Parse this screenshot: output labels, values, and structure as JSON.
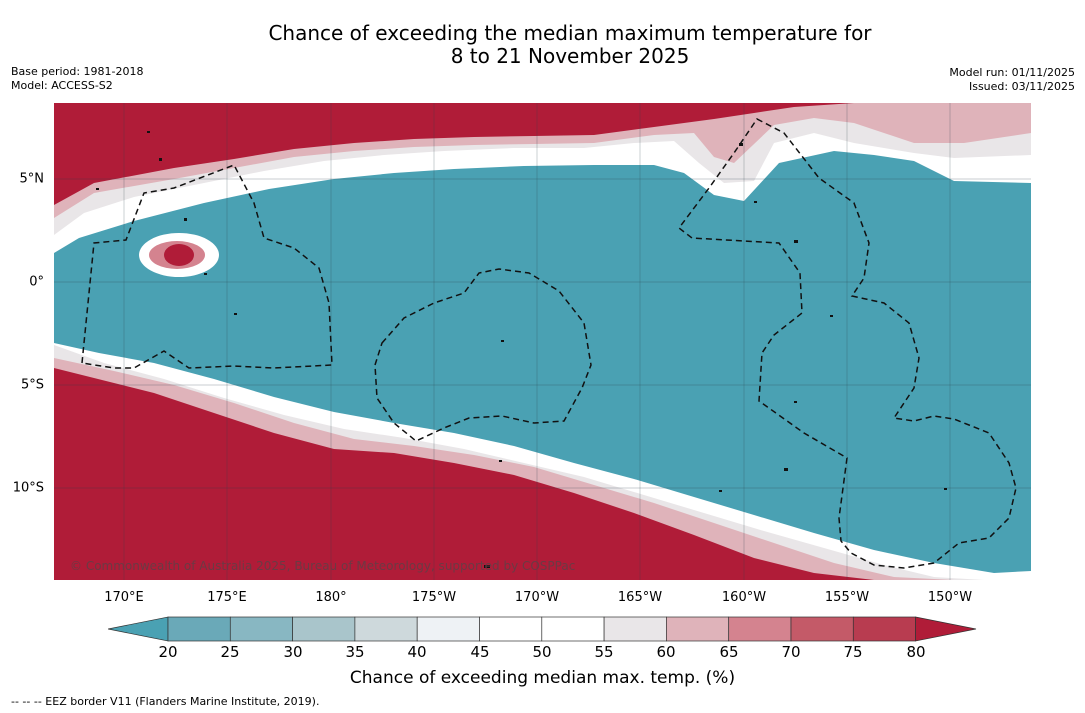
{
  "header": {
    "title_line1": "Chance of exceeding the median maximum temperature for",
    "title_line2": "8 to 21 November 2025",
    "base_period": "Base period: 1981-2018",
    "model": "Model: ACCESS-S2",
    "model_run": "Model run: 01/11/2025",
    "issued": "Issued: 03/11/2025"
  },
  "map": {
    "copyright": "© Commonwealth of Australia 2025, Bureau of Meteorology, supported by COSPPac",
    "lon_labels": [
      "170°E",
      "175°E",
      "180°",
      "175°W",
      "170°W",
      "165°W",
      "160°W",
      "155°W",
      "150°W"
    ],
    "lat_labels": [
      "5°N",
      "0°",
      "5°S",
      "10°S"
    ],
    "colors": {
      "hot_extreme": "#b01c38",
      "cool": "#4aa1b3",
      "white": "#ffffff"
    }
  },
  "colorbar": {
    "ticks": [
      "20",
      "25",
      "30",
      "35",
      "40",
      "45",
      "50",
      "55",
      "60",
      "65",
      "70",
      "75",
      "80"
    ],
    "colors": [
      "#4aa1b3",
      "#6aa9b8",
      "#88b7c2",
      "#a9c5cb",
      "#ced9dc",
      "#eef2f5",
      "#ffffff",
      "#ffffff",
      "#e9e6e8",
      "#dfb3ba",
      "#d4838f",
      "#c45a68",
      "#b83c50",
      "#b01c38"
    ],
    "title": "Chance of exceeding median max. temp. (%)"
  },
  "footer": {
    "legend": "--  --  -- EEZ border V11 (Flanders Marine Institute, 2019)."
  }
}
